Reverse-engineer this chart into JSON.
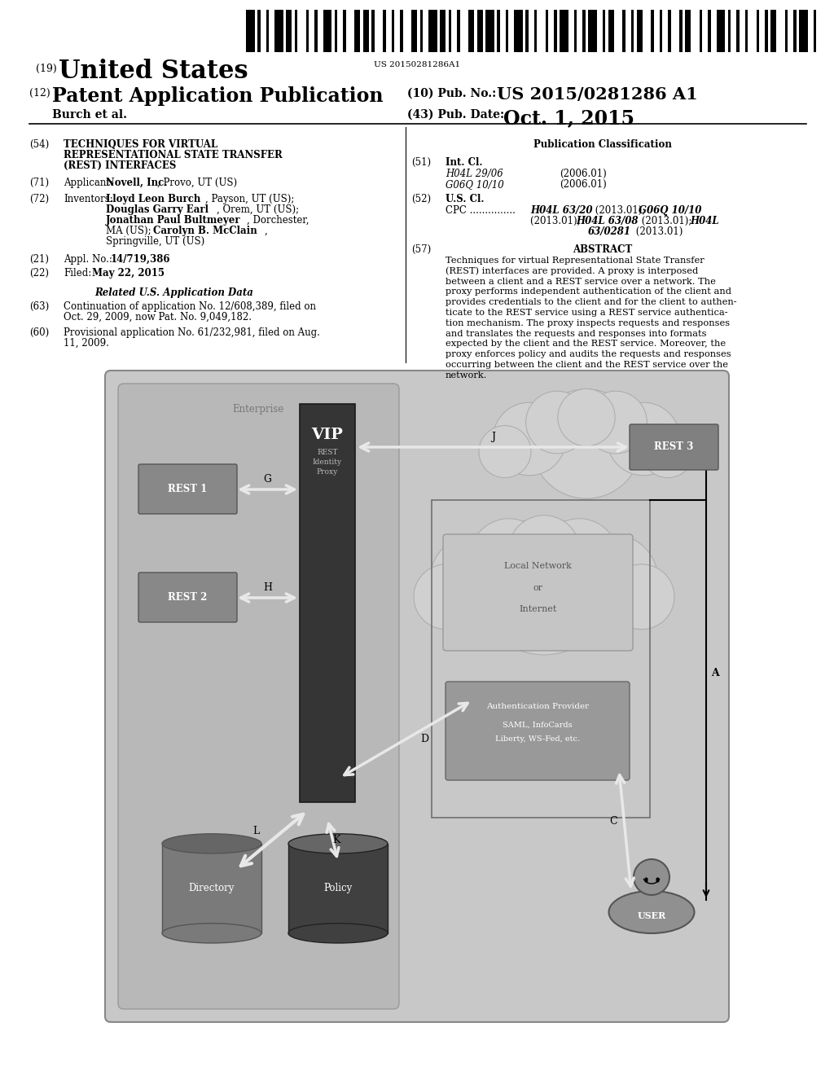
{
  "barcode_text": "US 20150281286A1",
  "bg": "#ffffff",
  "diag_outer_bg": "#c8c8c8",
  "enterprise_bg": "#b8b8b8",
  "vip_color": "#353535",
  "rest_color": "#888888",
  "rest3_color": "#808080",
  "cloud_color": "#d0d0d0",
  "inet_rect_bg": "#c5c5c5",
  "auth_rect_bg": "#999999",
  "dir_color": "#808080",
  "pol_color": "#404040",
  "user_color": "#909090",
  "arrow_color": "#e8e8e8",
  "text_lines": {
    "line19": "(19)",
    "united_states": "United States",
    "line12": "(12)",
    "patent_pub": "Patent Application Publication",
    "burch": "Burch et al.",
    "pubno_label": "(10) Pub. No.:",
    "pubno": "US 2015/0281286 A1",
    "pubdate_label": "(43) Pub. Date:",
    "pubdate": "Oct. 1, 2015"
  }
}
